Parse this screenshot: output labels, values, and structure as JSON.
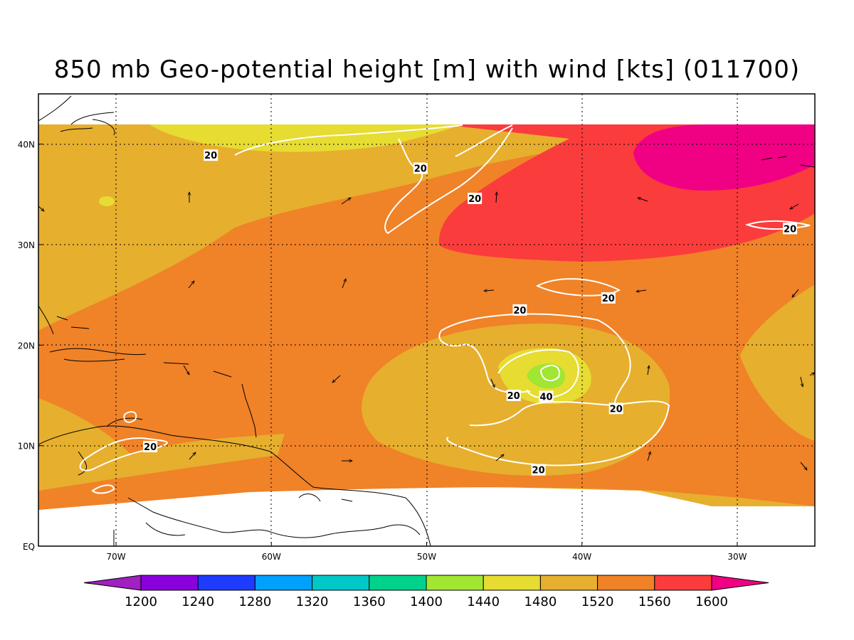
{
  "title": "850 mb Geo-potential height [m] with wind [kts] (011700)",
  "map": {
    "lon_range": [
      -75,
      -25
    ],
    "lat_range": [
      0,
      45
    ],
    "lon_ticks": [
      {
        "value": -70,
        "label": "70W"
      },
      {
        "value": -60,
        "label": "60W"
      },
      {
        "value": -50,
        "label": "50W"
      },
      {
        "value": -40,
        "label": "40W"
      },
      {
        "value": -30,
        "label": "30W"
      }
    ],
    "lat_ticks": [
      {
        "value": 0,
        "label": "EQ"
      },
      {
        "value": 10,
        "label": "10N"
      },
      {
        "value": 20,
        "label": "20N"
      },
      {
        "value": 30,
        "label": "30N"
      },
      {
        "value": 40,
        "label": "40N"
      }
    ],
    "gridlines": "dotted",
    "contour_labels": [
      {
        "value": "20",
        "lon": -63.9,
        "lat": 38.9
      },
      {
        "value": "20",
        "lon": -50.4,
        "lat": 37.6
      },
      {
        "value": "20",
        "lon": -46.9,
        "lat": 34.6
      },
      {
        "value": "20",
        "lon": -26.6,
        "lat": 31.6
      },
      {
        "value": "20",
        "lon": -38.3,
        "lat": 24.7
      },
      {
        "value": "20",
        "lon": -44.0,
        "lat": 23.5
      },
      {
        "value": "20",
        "lon": -44.4,
        "lat": 15.0
      },
      {
        "value": "40",
        "lon": -42.3,
        "lat": 14.9
      },
      {
        "value": "20",
        "lon": -37.8,
        "lat": 13.7
      },
      {
        "value": "20",
        "lon": -67.8,
        "lat": 9.9
      },
      {
        "value": "20",
        "lon": -42.8,
        "lat": 7.6
      }
    ]
  },
  "colorbar": {
    "levels": [
      "1200",
      "1240",
      "1280",
      "1320",
      "1360",
      "1400",
      "1440",
      "1480",
      "1520",
      "1560",
      "1600"
    ],
    "colors": [
      "#a020c0",
      "#8a00dc",
      "#1e3cff",
      "#00a0ff",
      "#00c8c8",
      "#00d28c",
      "#a0e632",
      "#e6dc32",
      "#e6af2d",
      "#f08228",
      "#fa3c3c",
      "#f00082"
    ]
  },
  "colors": {
    "land_outline": "#000000",
    "wind_contour": "#ffffff",
    "wind_arrow": "#000000"
  }
}
